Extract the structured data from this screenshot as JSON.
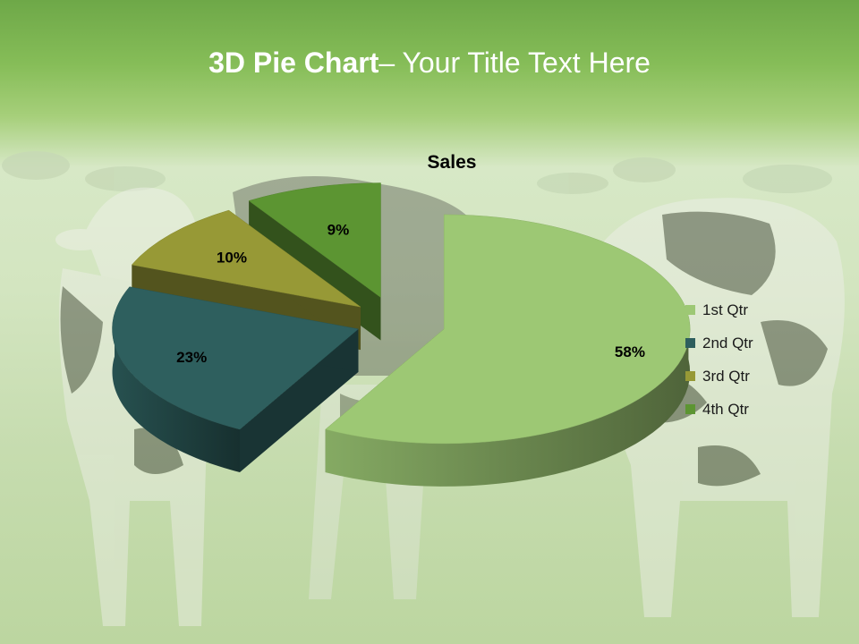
{
  "slide": {
    "title_bold": "3D Pie Chart",
    "title_rest": "– Your Title Text Here"
  },
  "background": {
    "description_icon": "cows-pasture-photo",
    "colors": {
      "grass_top": "#6ea848",
      "grass_light": "#d7e8c6"
    }
  },
  "chart_data": {
    "type": "pie",
    "style": "3d-exploded",
    "title": "Sales",
    "categories": [
      "1st Qtr",
      "2nd Qtr",
      "3rd Qtr",
      "4th Qtr"
    ],
    "values": [
      58,
      23,
      10,
      9
    ],
    "data_labels": [
      "58%",
      "23%",
      "10%",
      "9%"
    ],
    "colors": [
      "#9dc874",
      "#2e5f5e",
      "#979936",
      "#5c9532"
    ],
    "legend": {
      "position": "right",
      "entries": [
        "1st Qtr",
        "2nd Qtr",
        "3rd Qtr",
        "4th Qtr"
      ]
    }
  }
}
